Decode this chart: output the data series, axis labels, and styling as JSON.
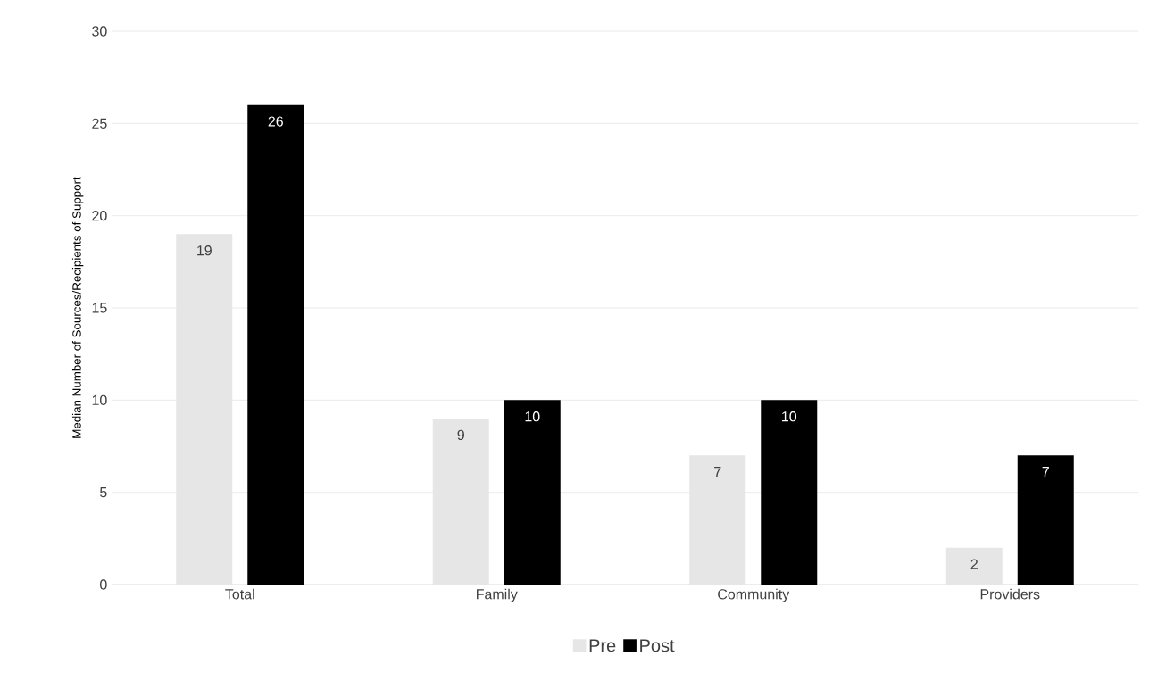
{
  "chart_data": {
    "type": "bar",
    "ylabel": "Median Number of Sources/Recipients of Support",
    "categories": [
      "Total",
      "Family",
      "Community",
      "Providers"
    ],
    "series": [
      {
        "name": "Pre",
        "color": "#e7e6e6",
        "values": [
          19,
          9,
          7,
          2
        ]
      },
      {
        "name": "Post",
        "color": "#000000",
        "values": [
          26,
          10,
          10,
          7
        ]
      }
    ],
    "ylim": [
      0,
      30
    ],
    "yticks": [
      0,
      5,
      10,
      15,
      20,
      25,
      30
    ],
    "grid": "y",
    "legend": "bottom",
    "data_labels": true
  }
}
